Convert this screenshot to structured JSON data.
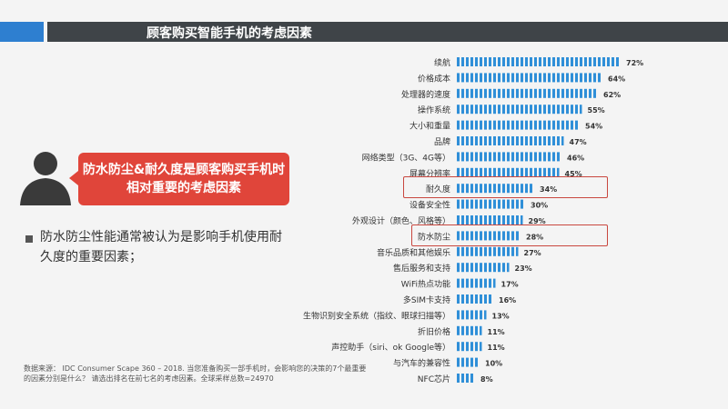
{
  "header": {
    "title": "顾客购买智能手机的考虑因素"
  },
  "callout": {
    "text": "防水防尘&耐久度是顾客购买手机时相对重要的考虑因素"
  },
  "bullet": {
    "text": "防水防尘性能通常被认为是影响手机使用耐久度的重要因素；"
  },
  "source": "数据来源： IDC Consumer Scape 360 – 2018. 当您准备购买一部手机时，会影响您的决策的7个最重要的因素分别是什么？ 请选出排名在前七名的考虑因素。全球采样总数=24970",
  "colors": {
    "bar": "#2f8fd8",
    "highlight": "#c9473f",
    "callout": "#e0453a",
    "title_bar": "#3f4448",
    "accent": "#2e7fd0"
  },
  "chart_data": {
    "type": "bar",
    "orientation": "horizontal",
    "categories": [
      "续航",
      "价格成本",
      "处理器的速度",
      "操作系统",
      "大小和重量",
      "品牌",
      "网络类型（3G、4G等）",
      "屏幕分辨率",
      "耐久度",
      "设备安全性",
      "外观设计（颜色、风格等）",
      "防水防尘",
      "音乐品质和其他娱乐",
      "售后服务和支持",
      "WiFi热点功能",
      "多SIM卡支持",
      "生物识别安全系统（指纹、眼球扫描等）",
      "折旧价格",
      "声控助手（siri、ok Google等）",
      "与汽车的兼容性",
      "NFC芯片"
    ],
    "values": [
      72,
      64,
      62,
      55,
      54,
      47,
      46,
      45,
      34,
      30,
      29,
      28,
      27,
      23,
      17,
      16,
      13,
      11,
      11,
      10,
      8
    ],
    "value_format": "percent",
    "highlighted": [
      "耐久度",
      "防水防尘"
    ],
    "grid": false
  }
}
